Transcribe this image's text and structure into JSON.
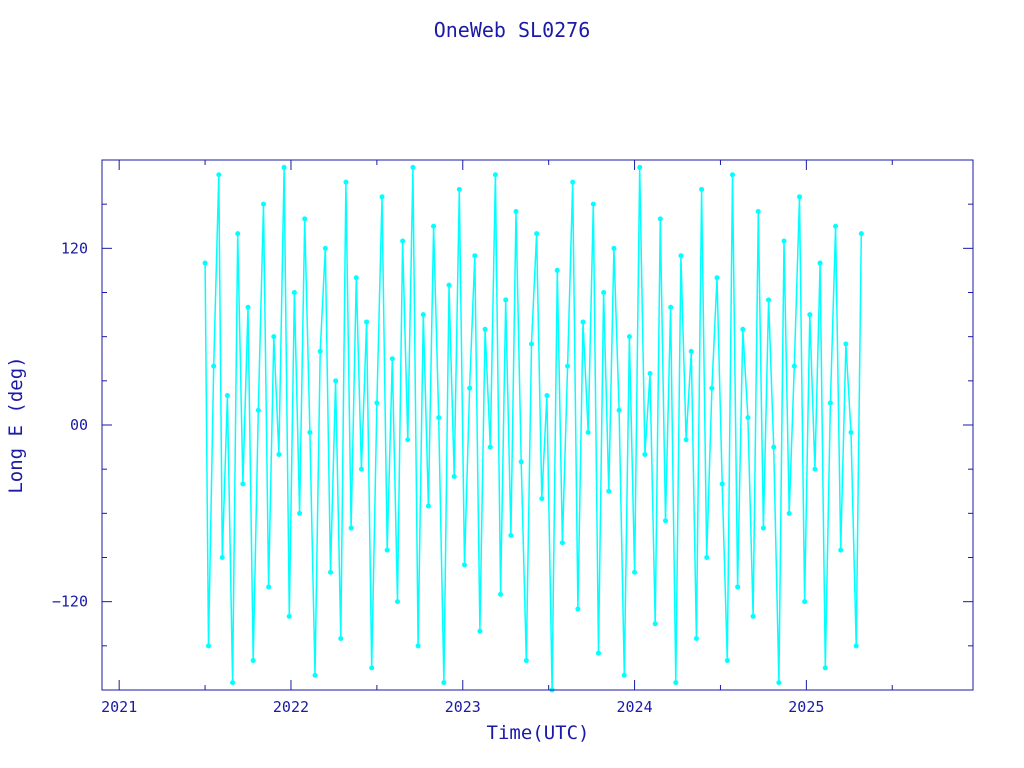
{
  "chart_data": {
    "type": "line",
    "title": "OneWeb SL0276",
    "xlabel": "Time(UTC)",
    "ylabel": "Long E (deg)",
    "xlim": [
      2020.9,
      2025.97
    ],
    "ylim": [
      -180,
      180
    ],
    "x_ticks": [
      {
        "value": 2021,
        "label": "2021"
      },
      {
        "value": 2022,
        "label": "2022"
      },
      {
        "value": 2023,
        "label": "2023"
      },
      {
        "value": 2024,
        "label": "2024"
      },
      {
        "value": 2025,
        "label": "2025"
      }
    ],
    "y_ticks": [
      {
        "value": 120,
        "label": "120"
      },
      {
        "value": 0,
        "label": "00"
      },
      {
        "value": -120,
        "label": "−120"
      }
    ],
    "grid": false,
    "series": [
      {
        "color": "#00ffff",
        "x": [
          2021.5,
          2021.52,
          2021.55,
          2021.58,
          2021.6,
          2021.63,
          2021.66,
          2021.69,
          2021.72,
          2021.75,
          2021.78,
          2021.81,
          2021.84,
          2021.87,
          2021.9,
          2021.93,
          2021.96,
          2021.99,
          2022.02,
          2022.05,
          2022.08,
          2022.11,
          2022.14,
          2022.17,
          2022.2,
          2022.23,
          2022.26,
          2022.29,
          2022.32,
          2022.35,
          2022.38,
          2022.41,
          2022.44,
          2022.47,
          2022.5,
          2022.53,
          2022.56,
          2022.59,
          2022.62,
          2022.65,
          2022.68,
          2022.71,
          2022.74,
          2022.77,
          2022.8,
          2022.83,
          2022.86,
          2022.89,
          2022.92,
          2022.95,
          2022.98,
          2023.01,
          2023.04,
          2023.07,
          2023.1,
          2023.13,
          2023.16,
          2023.19,
          2023.22,
          2023.25,
          2023.28,
          2023.31,
          2023.34,
          2023.37,
          2023.4,
          2023.43,
          2023.46,
          2023.49,
          2023.52,
          2023.55,
          2023.58,
          2023.61,
          2023.64,
          2023.67,
          2023.7,
          2023.73,
          2023.76,
          2023.79,
          2023.82,
          2023.85,
          2023.88,
          2023.91,
          2023.94,
          2023.97,
          2024.0,
          2024.03,
          2024.06,
          2024.09,
          2024.12,
          2024.15,
          2024.18,
          2024.21,
          2024.24,
          2024.27,
          2024.3,
          2024.33,
          2024.36,
          2024.39,
          2024.42,
          2024.45,
          2024.48,
          2024.51,
          2024.54,
          2024.57,
          2024.6,
          2024.63,
          2024.66,
          2024.69,
          2024.72,
          2024.75,
          2024.78,
          2024.81,
          2024.84,
          2024.87,
          2024.9,
          2024.93,
          2024.96,
          2024.99,
          2025.02,
          2025.05,
          2025.08,
          2025.11,
          2025.14,
          2025.17,
          2025.2,
          2025.23,
          2025.26,
          2025.29,
          2025.32
        ],
        "y": [
          110,
          -150,
          40,
          170,
          -90,
          20,
          -175,
          130,
          -40,
          80,
          -160,
          10,
          150,
          -110,
          60,
          -20,
          175,
          -130,
          90,
          -60,
          140,
          -5,
          -170,
          50,
          120,
          -100,
          30,
          -145,
          165,
          -70,
          100,
          -30,
          70,
          -165,
          15,
          155,
          -85,
          45,
          -120,
          125,
          -10,
          175,
          -150,
          75,
          -55,
          135,
          5,
          -175,
          95,
          -35,
          160,
          -95,
          25,
          115,
          -140,
          65,
          -15,
          170,
          -115,
          85,
          -75,
          145,
          -25,
          -160,
          55,
          130,
          -50,
          20,
          -180,
          105,
          -80,
          40,
          165,
          -125,
          70,
          -5,
          150,
          -155,
          90,
          -45,
          120,
          10,
          -170,
          60,
          -100,
          175,
          -20,
          35,
          -135,
          140,
          -65,
          80,
          -175,
          115,
          -10,
          50,
          -145,
          160,
          -90,
          25,
          100,
          -40,
          -160,
          170,
          -110,
          65,
          5,
          -130,
          145,
          -70,
          85,
          -15,
          -175,
          125,
          -60,
          40,
          155,
          -120,
          75,
          -30,
          110,
          -165,
          15,
          135,
          -85,
          55,
          -5,
          -150,
          130
        ]
      }
    ]
  }
}
